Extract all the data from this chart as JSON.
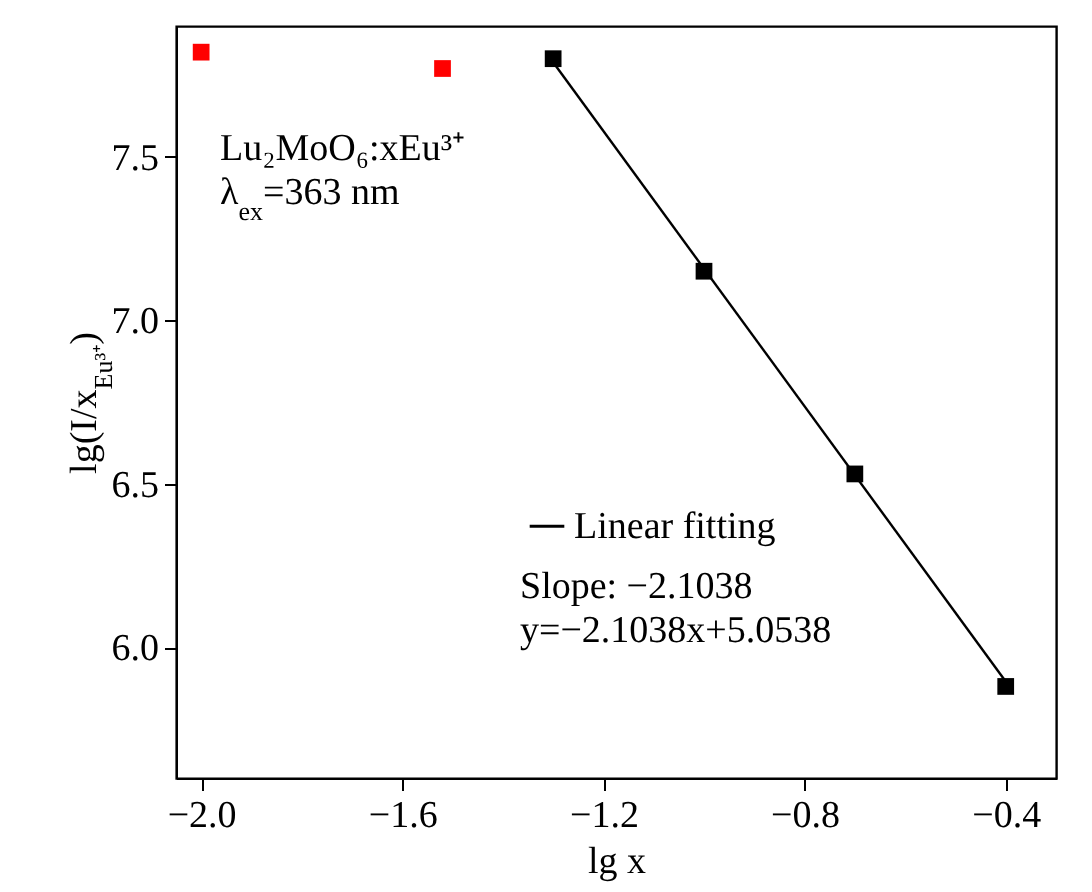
{
  "chart_data": {
    "type": "scatter",
    "xlabel": "lg x",
    "ylabel": "lg(I/x$_{Eu³⁺}$)",
    "xlim": [
      -2.05,
      -0.3
    ],
    "xticks": [
      {
        "value": -2.0,
        "label": "−2.0"
      },
      {
        "value": -1.6,
        "label": "−1.6"
      },
      {
        "value": -1.2,
        "label": "−1.2"
      },
      {
        "value": -0.8,
        "label": "−0.8"
      },
      {
        "value": -0.4,
        "label": "−0.4"
      }
    ],
    "ylim": [
      5.6,
      7.9
    ],
    "yticks": [
      {
        "value": 6.0,
        "label": "6.0"
      },
      {
        "value": 6.5,
        "label": "6.5"
      },
      {
        "value": 7.0,
        "label": "7.0"
      },
      {
        "value": 7.5,
        "label": "7.5"
      }
    ],
    "series": [
      {
        "color": "#ff0000",
        "x": [
          -2.0,
          -1.52
        ],
        "values": [
          7.82,
          7.77
        ]
      },
      {
        "color": "#000000",
        "x": [
          -1.3,
          -1.0,
          -0.7,
          -0.4
        ],
        "values": [
          7.8,
          7.15,
          6.53,
          5.88
        ]
      },
      {
        "type": "line",
        "name": "Linear fitting",
        "color": "#000000",
        "marker": "none",
        "x": [
          -1.3,
          -0.4
        ],
        "values": [
          7.789,
          5.895
        ]
      }
    ],
    "marker": "square",
    "grid": false,
    "legend": "bottom",
    "annotations": [
      "Lu₂MoO₆:xEu³⁺",
      "λ$_{ex}$=363 nm",
      "Slope: −2.1038",
      "y=−2.1038x+5.0538"
    ]
  }
}
